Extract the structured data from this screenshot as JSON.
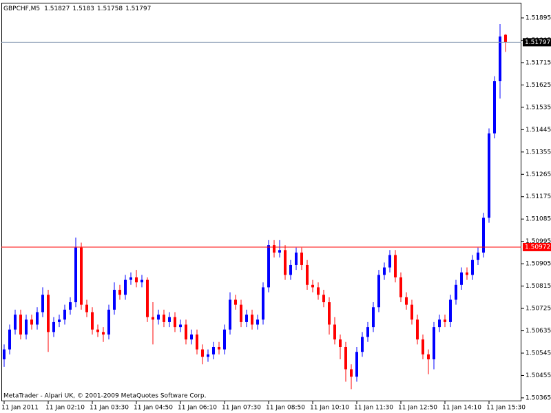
{
  "chart_data": {
    "type": "candlestick",
    "symbol": "GBPCHF,M5",
    "footer": "MetaTrader - Alpari UK, © 2001-2009 MetaQuotes Software Corp.",
    "up_color": "#0000ff",
    "down_color": "#ff0000",
    "categories": [
      "11 Jan 2011",
      null,
      null,
      null,
      null,
      null,
      null,
      null,
      "11 Jan 02:10",
      null,
      null,
      null,
      null,
      null,
      null,
      null,
      "11 Jan 03:30",
      null,
      null,
      null,
      null,
      null,
      null,
      null,
      "11 Jan 04:50",
      null,
      null,
      null,
      null,
      null,
      null,
      null,
      "11 Jan 06:10",
      null,
      null,
      null,
      null,
      null,
      null,
      null,
      "11 Jan 07:30",
      null,
      null,
      null,
      null,
      null,
      null,
      null,
      "11 Jan 08:50",
      null,
      null,
      null,
      null,
      null,
      null,
      null,
      "11 Jan 10:10",
      null,
      null,
      null,
      null,
      null,
      null,
      null,
      "11 Jan 11:30",
      null,
      null,
      null,
      null,
      null,
      null,
      null,
      "11 Jan 12:50",
      null,
      null,
      null,
      null,
      null,
      null,
      null,
      "11 Jan 14:10",
      null,
      null,
      null,
      null,
      null,
      null,
      null,
      "11 Jan 15:30",
      null,
      null,
      null
    ],
    "open": [
      1.5052,
      1.5056,
      1.5064,
      1.507,
      1.5062,
      1.5068,
      1.5066,
      1.5071,
      1.5078,
      1.5063,
      1.5067,
      1.5068,
      1.5072,
      1.5075,
      1.5097,
      1.5074,
      1.5071,
      1.5064,
      1.5063,
      1.5062,
      1.5072,
      1.508,
      1.5078,
      1.5084,
      1.5085,
      1.5083,
      1.5084,
      1.5069,
      1.5068,
      1.507,
      1.5067,
      1.5069,
      1.5065,
      1.5066,
      1.506,
      1.5062,
      1.5056,
      1.5053,
      1.5054,
      1.5057,
      1.5056,
      1.5064,
      1.5076,
      1.5074,
      1.5067,
      1.507,
      1.5066,
      1.5068,
      1.5081,
      1.5098,
      1.5095,
      1.5096,
      1.5086,
      1.509,
      1.5095,
      1.509,
      1.5082,
      1.5081,
      1.5078,
      1.5075,
      1.5066,
      1.506,
      1.5057,
      1.5048,
      1.5045,
      1.5055,
      1.5061,
      1.5065,
      1.5073,
      1.5086,
      1.5089,
      1.5094,
      1.5085,
      1.5077,
      1.5074,
      1.5068,
      1.506,
      1.5054,
      1.5052,
      1.5065,
      1.5068,
      1.5067,
      1.5076,
      1.5082,
      1.5087,
      1.5086,
      1.5092,
      1.5095,
      1.5109,
      1.5143,
      1.5164,
      1.51827
    ],
    "high": [
      1.5058,
      1.5066,
      1.5072,
      1.5072,
      1.507,
      1.507,
      1.5073,
      1.5081,
      1.508,
      1.5069,
      1.507,
      1.5074,
      1.5077,
      1.5101,
      1.5099,
      1.5076,
      1.5073,
      1.5066,
      1.5065,
      1.5074,
      1.5083,
      1.5082,
      1.5086,
      1.5087,
      1.5088,
      1.5086,
      1.5085,
      1.5075,
      1.5072,
      1.5072,
      1.5071,
      1.5071,
      1.5068,
      1.5068,
      1.5064,
      1.5064,
      1.5058,
      1.5056,
      1.5059,
      1.5059,
      1.5066,
      1.5079,
      1.5078,
      1.5076,
      1.5072,
      1.5072,
      1.507,
      1.5083,
      1.51,
      1.51,
      1.51,
      1.5098,
      1.5092,
      1.5097,
      1.5097,
      1.5092,
      1.5084,
      1.5083,
      1.508,
      1.5077,
      1.5069,
      1.5062,
      1.5059,
      1.505,
      1.5057,
      1.5063,
      1.5067,
      1.5075,
      1.5088,
      1.5091,
      1.5096,
      1.5096,
      1.5087,
      1.5079,
      1.5076,
      1.507,
      1.5062,
      1.5056,
      1.5067,
      1.507,
      1.507,
      1.5078,
      1.5084,
      1.5089,
      1.5089,
      1.5094,
      1.5097,
      1.5111,
      1.5145,
      1.5166,
      1.5187,
      1.5183
    ],
    "low": [
      1.5049,
      1.5054,
      1.5062,
      1.506,
      1.506,
      1.5064,
      1.5064,
      1.5069,
      1.5055,
      1.5061,
      1.5065,
      1.5066,
      1.507,
      1.5073,
      1.5072,
      1.5069,
      1.5062,
      1.5061,
      1.5059,
      1.506,
      1.507,
      1.5076,
      1.5076,
      1.5082,
      1.5081,
      1.5081,
      1.5067,
      1.5058,
      1.5066,
      1.5065,
      1.5065,
      1.5063,
      1.5063,
      1.5058,
      1.5058,
      1.5054,
      1.505,
      1.5051,
      1.5052,
      1.5054,
      1.5054,
      1.5062,
      1.5072,
      1.5065,
      1.5065,
      1.5064,
      1.5064,
      1.5066,
      1.5079,
      1.5093,
      1.5093,
      1.5084,
      1.5084,
      1.5088,
      1.5088,
      1.508,
      1.5079,
      1.5076,
      1.5073,
      1.5062,
      1.5058,
      1.5052,
      1.5043,
      1.504,
      1.5043,
      1.5053,
      1.5059,
      1.5063,
      1.5071,
      1.5084,
      1.5087,
      1.5083,
      1.5075,
      1.5072,
      1.5066,
      1.5058,
      1.5052,
      1.5046,
      1.5048,
      1.5063,
      1.5065,
      1.5065,
      1.5074,
      1.508,
      1.5084,
      1.5084,
      1.509,
      1.5093,
      1.5107,
      1.5141,
      1.5157,
      1.51758
    ],
    "close": [
      1.5056,
      1.5064,
      1.507,
      1.5062,
      1.5068,
      1.5066,
      1.5071,
      1.5078,
      1.5063,
      1.5067,
      1.5068,
      1.5072,
      1.5075,
      1.5097,
      1.5074,
      1.5071,
      1.5064,
      1.5063,
      1.5062,
      1.5072,
      1.508,
      1.5078,
      1.5084,
      1.5085,
      1.5083,
      1.5084,
      1.5069,
      1.5068,
      1.507,
      1.5067,
      1.5069,
      1.5065,
      1.5066,
      1.506,
      1.5062,
      1.5056,
      1.5053,
      1.5054,
      1.5057,
      1.5056,
      1.5064,
      1.5076,
      1.5074,
      1.5067,
      1.507,
      1.5066,
      1.5068,
      1.5081,
      1.5098,
      1.5095,
      1.5096,
      1.5086,
      1.509,
      1.5095,
      1.509,
      1.5082,
      1.5081,
      1.5078,
      1.5075,
      1.5066,
      1.506,
      1.5057,
      1.5048,
      1.5045,
      1.5055,
      1.5061,
      1.5065,
      1.5073,
      1.5086,
      1.5089,
      1.5094,
      1.5085,
      1.5077,
      1.5074,
      1.5068,
      1.506,
      1.5054,
      1.5052,
      1.5065,
      1.5068,
      1.5067,
      1.5076,
      1.5082,
      1.5087,
      1.5086,
      1.5092,
      1.5095,
      1.5109,
      1.5143,
      1.5164,
      1.5182,
      1.51797
    ],
    "ylim": [
      1.50351,
      1.51956
    ],
    "yticks": [
      1.51895,
      1.51805,
      1.51715,
      1.51625,
      1.51535,
      1.51445,
      1.51355,
      1.51265,
      1.51175,
      1.51085,
      1.50995,
      1.50905,
      1.50815,
      1.50725,
      1.50635,
      1.50545,
      1.50455,
      1.50365
    ],
    "hlines": [
      {
        "value": 1.51797,
        "color": "#7f93ad",
        "label_color": "#000000"
      },
      {
        "value": 1.50972,
        "color": "#ff0000",
        "label_color": "#ff0000"
      }
    ]
  }
}
